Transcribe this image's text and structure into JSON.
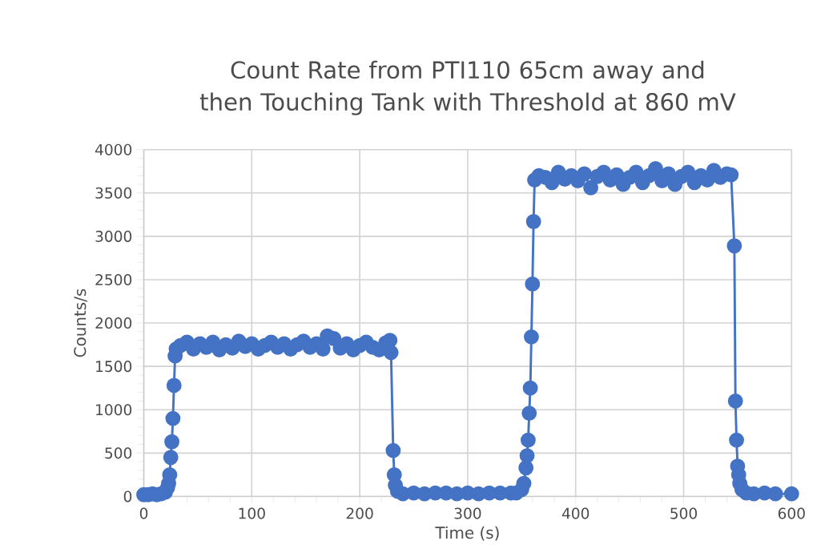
{
  "chart_data": {
    "type": "line",
    "title": "Count Rate from PTI110 65cm away and then Touching Tank with Threshold at 860 mV",
    "xlabel": "Time (s)",
    "ylabel": "Counts/s",
    "color": "#4472c4",
    "marker": "circle",
    "line_style": "solid",
    "grid": true,
    "xlim": [
      0,
      600
    ],
    "ylim": [
      0,
      4000
    ],
    "xticks": [
      0,
      100,
      200,
      300,
      400,
      500,
      600
    ],
    "yticks": [
      0,
      500,
      1000,
      1500,
      2000,
      2500,
      3000,
      3500,
      4000
    ],
    "x": [
      0,
      4,
      8,
      12,
      16,
      20,
      22,
      23,
      24,
      25,
      26,
      27,
      28,
      29,
      30,
      34,
      40,
      46,
      52,
      58,
      64,
      70,
      76,
      82,
      88,
      94,
      100,
      106,
      112,
      118,
      124,
      130,
      136,
      142,
      148,
      154,
      160,
      166,
      170,
      176,
      182,
      188,
      194,
      200,
      206,
      212,
      218,
      224,
      228,
      229,
      231,
      232,
      233,
      235,
      240,
      250,
      260,
      270,
      280,
      290,
      300,
      310,
      320,
      330,
      340,
      345,
      350,
      352,
      354,
      355,
      356,
      357,
      358,
      359,
      360,
      361,
      362,
      366,
      372,
      378,
      384,
      390,
      396,
      402,
      408,
      414,
      420,
      426,
      432,
      438,
      444,
      450,
      456,
      462,
      468,
      474,
      480,
      486,
      492,
      498,
      504,
      510,
      516,
      522,
      528,
      534,
      540,
      544,
      547,
      548,
      549,
      550,
      551,
      552,
      554,
      558,
      565,
      575,
      585,
      600
    ],
    "values": [
      20,
      20,
      30,
      20,
      30,
      50,
      100,
      150,
      250,
      450,
      630,
      900,
      1280,
      1620,
      1700,
      1740,
      1780,
      1700,
      1760,
      1720,
      1780,
      1690,
      1750,
      1710,
      1790,
      1730,
      1760,
      1700,
      1740,
      1780,
      1720,
      1760,
      1700,
      1750,
      1790,
      1720,
      1760,
      1700,
      1850,
      1820,
      1710,
      1760,
      1690,
      1740,
      1780,
      1720,
      1690,
      1770,
      1800,
      1660,
      530,
      250,
      130,
      60,
      30,
      40,
      30,
      40,
      40,
      30,
      40,
      30,
      40,
      40,
      40,
      40,
      80,
      150,
      330,
      470,
      650,
      960,
      1250,
      1840,
      2450,
      3170,
      3650,
      3700,
      3680,
      3620,
      3740,
      3660,
      3700,
      3640,
      3720,
      3560,
      3690,
      3740,
      3650,
      3710,
      3600,
      3680,
      3740,
      3620,
      3700,
      3780,
      3640,
      3720,
      3600,
      3690,
      3740,
      3620,
      3700,
      3650,
      3760,
      3680,
      3720,
      3710,
      2890,
      1100,
      650,
      350,
      250,
      150,
      80,
      40,
      30,
      40,
      30,
      30
    ]
  }
}
